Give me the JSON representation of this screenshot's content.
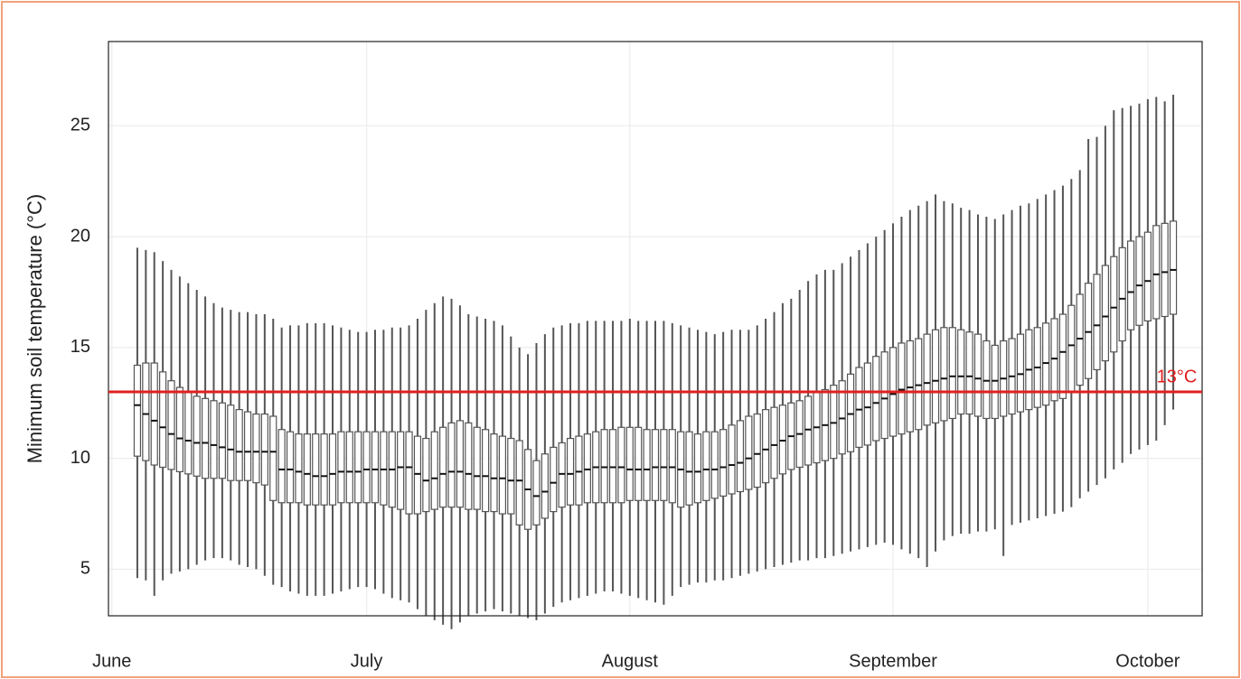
{
  "chart_data": {
    "type": "box",
    "y_label": "Minimum soil temperature (°C)",
    "xlim": [
      -0.4,
      128.4
    ],
    "ylim": [
      2.9,
      28.8
    ],
    "xticks": [
      {
        "value": 0,
        "label": "June"
      },
      {
        "value": 30,
        "label": "July"
      },
      {
        "value": 61,
        "label": "August"
      },
      {
        "value": 92,
        "label": "September"
      },
      {
        "value": 122,
        "label": "October"
      }
    ],
    "yticks": [
      5,
      10,
      15,
      20,
      25
    ],
    "grid": true,
    "color": "#555555",
    "reference_line": {
      "value": 13,
      "label": "13°C",
      "color": "#e02020"
    },
    "x": [
      3,
      4,
      5,
      6,
      7,
      8,
      9,
      10,
      11,
      12,
      13,
      14,
      15,
      16,
      17,
      18,
      19,
      20,
      21,
      22,
      23,
      24,
      25,
      26,
      27,
      28,
      29,
      30,
      31,
      32,
      33,
      34,
      35,
      36,
      37,
      38,
      39,
      40,
      41,
      42,
      43,
      44,
      45,
      46,
      47,
      48,
      49,
      50,
      51,
      52,
      53,
      54,
      55,
      56,
      57,
      58,
      59,
      60,
      61,
      62,
      63,
      64,
      65,
      66,
      67,
      68,
      69,
      70,
      71,
      72,
      73,
      74,
      75,
      76,
      77,
      78,
      79,
      80,
      81,
      82,
      83,
      84,
      85,
      86,
      87,
      88,
      89,
      90,
      91,
      92,
      93,
      94,
      95,
      96,
      97,
      98,
      99,
      100,
      101,
      102,
      103,
      104,
      105,
      106,
      107,
      108,
      109,
      110,
      111,
      112,
      113,
      114,
      115,
      116,
      117,
      118,
      119,
      120,
      121,
      122,
      123,
      124,
      125
    ],
    "min": [
      4.6,
      4.5,
      3.8,
      4.5,
      4.8,
      4.9,
      5.0,
      5.2,
      5.4,
      5.5,
      5.5,
      5.4,
      5.2,
      5.1,
      5.0,
      4.7,
      4.3,
      4.2,
      4.0,
      3.9,
      3.8,
      3.8,
      3.8,
      3.9,
      4.0,
      4.1,
      4.2,
      4.2,
      4.1,
      3.9,
      3.7,
      3.6,
      3.5,
      3.2,
      2.9,
      2.7,
      2.5,
      2.3,
      2.6,
      2.9,
      3.0,
      3.1,
      3.2,
      3.1,
      3.0,
      2.9,
      2.8,
      2.7,
      3.0,
      3.3,
      3.5,
      3.6,
      3.7,
      3.8,
      3.9,
      4.0,
      4.0,
      3.9,
      3.8,
      3.7,
      3.6,
      3.5,
      3.4,
      3.8,
      4.2,
      4.3,
      4.4,
      4.4,
      4.5,
      4.5,
      4.6,
      4.7,
      4.8,
      4.9,
      5.0,
      5.1,
      5.2,
      5.3,
      5.4,
      5.4,
      5.5,
      5.5,
      5.6,
      5.7,
      5.8,
      5.9,
      6.0,
      6.1,
      6.2,
      6.1,
      5.9,
      5.7,
      5.5,
      5.1,
      5.8,
      6.3,
      6.5,
      6.6,
      6.6,
      6.7,
      6.7,
      6.8,
      5.6,
      7.0,
      7.1,
      7.2,
      7.3,
      7.4,
      7.5,
      7.6,
      7.8,
      8.2,
      8.5,
      8.8,
      9.1,
      9.5,
      9.8,
      10.2,
      10.4,
      10.6,
      10.8,
      11.5,
      12.2
    ],
    "q1": [
      10.1,
      9.9,
      9.7,
      9.6,
      9.5,
      9.4,
      9.3,
      9.2,
      9.1,
      9.1,
      9.1,
      9.0,
      9.0,
      9.0,
      8.9,
      8.8,
      8.1,
      8.0,
      8.0,
      8.0,
      7.9,
      7.9,
      7.9,
      7.9,
      8.0,
      8.0,
      8.0,
      8.0,
      8.0,
      7.9,
      7.8,
      7.7,
      7.5,
      7.5,
      7.6,
      7.7,
      7.8,
      7.8,
      7.8,
      7.7,
      7.7,
      7.6,
      7.6,
      7.5,
      7.5,
      7.0,
      6.8,
      7.0,
      7.3,
      7.6,
      7.8,
      7.9,
      7.9,
      8.0,
      8.0,
      8.0,
      8.0,
      8.0,
      8.1,
      8.1,
      8.1,
      8.1,
      8.1,
      8.0,
      7.8,
      7.9,
      8.0,
      8.1,
      8.2,
      8.3,
      8.4,
      8.5,
      8.6,
      8.7,
      8.9,
      9.1,
      9.3,
      9.5,
      9.6,
      9.7,
      9.8,
      9.9,
      10.0,
      10.2,
      10.3,
      10.5,
      10.6,
      10.8,
      10.9,
      11.0,
      11.1,
      11.2,
      11.3,
      11.5,
      11.6,
      11.7,
      11.8,
      12.0,
      12.0,
      11.9,
      11.8,
      11.8,
      11.9,
      12.0,
      12.1,
      12.2,
      12.3,
      12.4,
      12.6,
      12.7,
      13.0,
      13.3,
      13.6,
      14.0,
      14.4,
      14.8,
      15.3,
      15.8,
      16.0,
      16.2,
      16.3,
      16.4,
      16.5
    ],
    "median": [
      12.4,
      12.0,
      11.7,
      11.4,
      11.1,
      10.9,
      10.8,
      10.7,
      10.7,
      10.6,
      10.5,
      10.4,
      10.3,
      10.3,
      10.3,
      10.3,
      10.3,
      9.5,
      9.5,
      9.4,
      9.3,
      9.2,
      9.2,
      9.3,
      9.4,
      9.4,
      9.4,
      9.5,
      9.5,
      9.5,
      9.5,
      9.6,
      9.6,
      9.3,
      9.0,
      9.1,
      9.3,
      9.4,
      9.4,
      9.3,
      9.2,
      9.2,
      9.1,
      9.1,
      9.0,
      9.0,
      8.6,
      8.3,
      8.5,
      8.9,
      9.3,
      9.3,
      9.4,
      9.5,
      9.6,
      9.6,
      9.6,
      9.6,
      9.5,
      9.5,
      9.5,
      9.6,
      9.6,
      9.6,
      9.5,
      9.4,
      9.4,
      9.5,
      9.5,
      9.6,
      9.7,
      9.8,
      10.0,
      10.2,
      10.4,
      10.6,
      10.8,
      11.0,
      11.1,
      11.3,
      11.4,
      11.5,
      11.6,
      11.8,
      12.0,
      12.2,
      12.3,
      12.5,
      12.7,
      12.9,
      13.1,
      13.2,
      13.3,
      13.4,
      13.5,
      13.6,
      13.7,
      13.7,
      13.7,
      13.6,
      13.5,
      13.5,
      13.6,
      13.7,
      13.8,
      14.0,
      14.1,
      14.3,
      14.5,
      14.8,
      15.1,
      15.4,
      15.7,
      16.0,
      16.4,
      16.8,
      17.2,
      17.5,
      17.8,
      18.0,
      18.3,
      18.4,
      18.5
    ],
    "q3": [
      14.2,
      14.3,
      14.3,
      13.9,
      13.5,
      13.2,
      13.0,
      12.8,
      12.7,
      12.6,
      12.5,
      12.4,
      12.2,
      12.1,
      12.0,
      12.0,
      11.9,
      11.3,
      11.2,
      11.1,
      11.1,
      11.1,
      11.1,
      11.1,
      11.2,
      11.2,
      11.2,
      11.2,
      11.2,
      11.2,
      11.2,
      11.2,
      11.2,
      11.0,
      10.9,
      11.2,
      11.4,
      11.6,
      11.7,
      11.6,
      11.4,
      11.3,
      11.1,
      11.0,
      10.9,
      10.8,
      10.4,
      9.9,
      10.2,
      10.5,
      10.7,
      10.9,
      11.0,
      11.1,
      11.2,
      11.3,
      11.3,
      11.4,
      11.4,
      11.4,
      11.3,
      11.3,
      11.3,
      11.3,
      11.2,
      11.2,
      11.1,
      11.2,
      11.2,
      11.3,
      11.5,
      11.7,
      11.9,
      12.0,
      12.2,
      12.3,
      12.4,
      12.5,
      12.6,
      12.8,
      13.0,
      13.1,
      13.3,
      13.5,
      13.8,
      14.1,
      14.3,
      14.6,
      14.8,
      15.0,
      15.2,
      15.3,
      15.4,
      15.6,
      15.8,
      15.9,
      15.9,
      15.8,
      15.7,
      15.6,
      15.3,
      15.1,
      15.3,
      15.4,
      15.6,
      15.8,
      15.9,
      16.1,
      16.3,
      16.5,
      16.9,
      17.4,
      17.9,
      18.3,
      18.7,
      19.1,
      19.5,
      19.8,
      20.0,
      20.2,
      20.5,
      20.6,
      20.7
    ],
    "max": [
      19.5,
      19.4,
      19.3,
      18.9,
      18.5,
      18.2,
      17.9,
      17.6,
      17.3,
      17.0,
      16.8,
      16.7,
      16.6,
      16.6,
      16.5,
      16.5,
      16.3,
      15.9,
      16.0,
      16.0,
      16.1,
      16.1,
      16.1,
      16.0,
      15.9,
      15.8,
      15.7,
      15.7,
      15.8,
      15.8,
      15.9,
      15.9,
      16.0,
      16.3,
      16.7,
      17.0,
      17.3,
      17.2,
      16.9,
      16.5,
      16.4,
      16.3,
      16.2,
      16.0,
      15.5,
      15.0,
      14.7,
      15.2,
      15.6,
      15.9,
      16.0,
      16.1,
      16.1,
      16.2,
      16.2,
      16.2,
      16.2,
      16.2,
      16.3,
      16.2,
      16.2,
      16.2,
      16.2,
      16.1,
      16.0,
      15.9,
      15.8,
      15.7,
      15.6,
      15.7,
      15.8,
      15.8,
      15.8,
      16.0,
      16.3,
      16.6,
      17.0,
      17.2,
      17.6,
      18.0,
      18.3,
      18.5,
      18.5,
      18.8,
      19.1,
      19.4,
      19.7,
      20.0,
      20.3,
      20.6,
      20.9,
      21.2,
      21.4,
      21.6,
      21.9,
      21.6,
      21.5,
      21.3,
      21.2,
      21.0,
      20.9,
      20.8,
      21.0,
      21.2,
      21.4,
      21.5,
      21.7,
      21.9,
      22.1,
      22.3,
      22.6,
      23.0,
      24.4,
      24.5,
      25.0,
      25.7,
      25.8,
      25.9,
      26.0,
      26.2,
      26.3,
      26.1,
      26.4
    ]
  }
}
